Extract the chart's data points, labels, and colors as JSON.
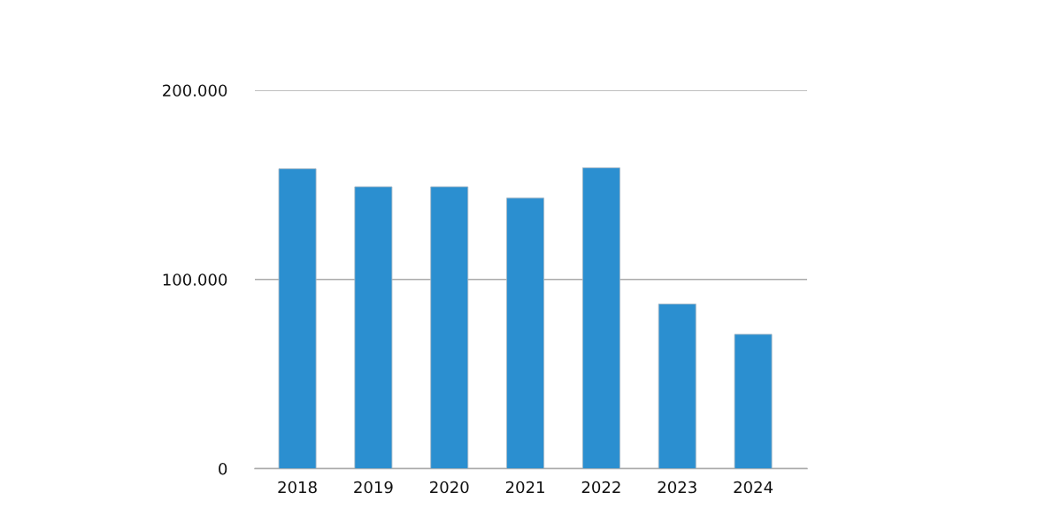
{
  "chart_data": {
    "type": "bar",
    "categories": [
      "2018",
      "2019",
      "2020",
      "2021",
      "2022",
      "2023",
      "2024"
    ],
    "values": [
      158500,
      149000,
      149000,
      143000,
      159000,
      87000,
      71000
    ],
    "color": "#2b8fd0",
    "ylim": [
      0,
      200000
    ],
    "yticks": [
      {
        "value": 0,
        "label": "0"
      },
      {
        "value": 100000,
        "label": "100.000"
      },
      {
        "value": 200000,
        "label": "200.000"
      }
    ],
    "grid": "y"
  }
}
